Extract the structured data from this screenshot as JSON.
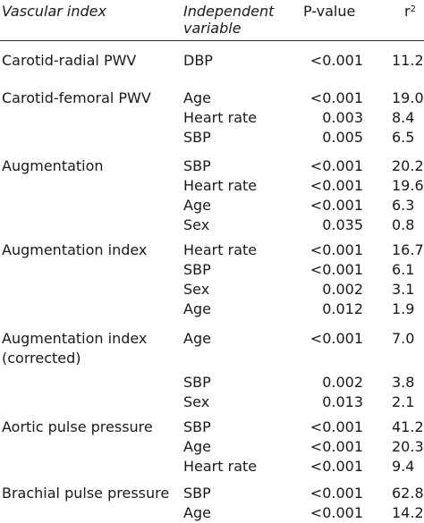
{
  "headers": {
    "vascular_index": "Vascular index",
    "independent_variable_line1": "Independent",
    "independent_variable_line2": "variable",
    "p_value": "P-value",
    "r2": "r",
    "r2_sup": "2"
  },
  "rows": [
    {
      "index": "Carotid-radial PWV",
      "variable": "DBP",
      "p": "<0.001",
      "r2": "11.2"
    },
    {
      "index": "Carotid-femoral PWV",
      "variable": "Age",
      "p": "<0.001",
      "r2": "19.0"
    },
    {
      "index": "",
      "variable": "Heart rate",
      "p": "0.003",
      "r2": "8.4"
    },
    {
      "index": "",
      "variable": "SBP",
      "p": "0.005",
      "r2": "6.5"
    },
    {
      "index": "Augmentation",
      "variable": "SBP",
      "p": "<0.001",
      "r2": "20.2"
    },
    {
      "index": "",
      "variable": "Heart rate",
      "p": "<0.001",
      "r2": "19.6"
    },
    {
      "index": "",
      "variable": "Age",
      "p": "<0.001",
      "r2": "6.3"
    },
    {
      "index": "",
      "variable": "Sex",
      "p": "0.035",
      "r2": "0.8"
    },
    {
      "index": "Augmentation index",
      "variable": "Heart rate",
      "p": "<0.001",
      "r2": "16.7"
    },
    {
      "index": "",
      "variable": "SBP",
      "p": "<0.001",
      "r2": "6.1"
    },
    {
      "index": "",
      "variable": "Sex",
      "p": "0.002",
      "r2": "3.1"
    },
    {
      "index": "",
      "variable": "Age",
      "p": "0.012",
      "r2": "1.9"
    },
    {
      "index": "Augmentation index",
      "variable": "Age",
      "p": "<0.001",
      "r2": "7.0"
    },
    {
      "index": "(corrected)",
      "variable": "",
      "p": "",
      "r2": ""
    },
    {
      "index": "",
      "variable": "SBP",
      "p": "0.002",
      "r2": "3.8"
    },
    {
      "index": "",
      "variable": "Sex",
      "p": "0.013",
      "r2": "2.1"
    },
    {
      "index": "Aortic pulse pressure",
      "variable": "SBP",
      "p": "<0.001",
      "r2": "41.2"
    },
    {
      "index": "",
      "variable": "Age",
      "p": "<0.001",
      "r2": "20.3"
    },
    {
      "index": "",
      "variable": "Heart rate",
      "p": "<0.001",
      "r2": "9.4"
    },
    {
      "index": "Brachial pulse pressure",
      "variable": "SBP",
      "p": "<0.001",
      "r2": "62.8"
    },
    {
      "index": "",
      "variable": "Age",
      "p": "<0.001",
      "r2": "14.2"
    }
  ]
}
